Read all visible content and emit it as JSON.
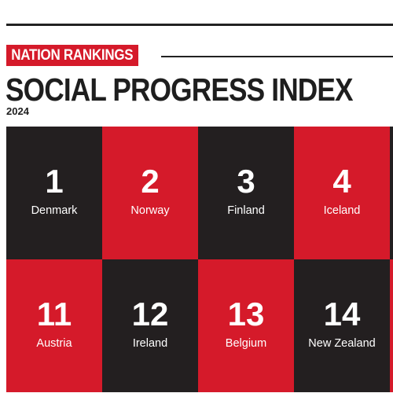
{
  "header": {
    "tag": "NATION RANKINGS",
    "title": "SOCIAL PROGRESS INDEX",
    "year": "2024"
  },
  "colors": {
    "accent_red": "#d51a2a",
    "tile_dark": "#231f20",
    "text_dark": "#1e1e1e"
  },
  "rankings": [
    {
      "rank": "1",
      "country": "Denmark"
    },
    {
      "rank": "2",
      "country": "Norway"
    },
    {
      "rank": "3",
      "country": "Finland"
    },
    {
      "rank": "4",
      "country": "Iceland"
    },
    {
      "rank": "11",
      "country": "Austria"
    },
    {
      "rank": "12",
      "country": "Ireland"
    },
    {
      "rank": "13",
      "country": "Belgium"
    },
    {
      "rank": "14",
      "country": "New Zealand"
    }
  ]
}
